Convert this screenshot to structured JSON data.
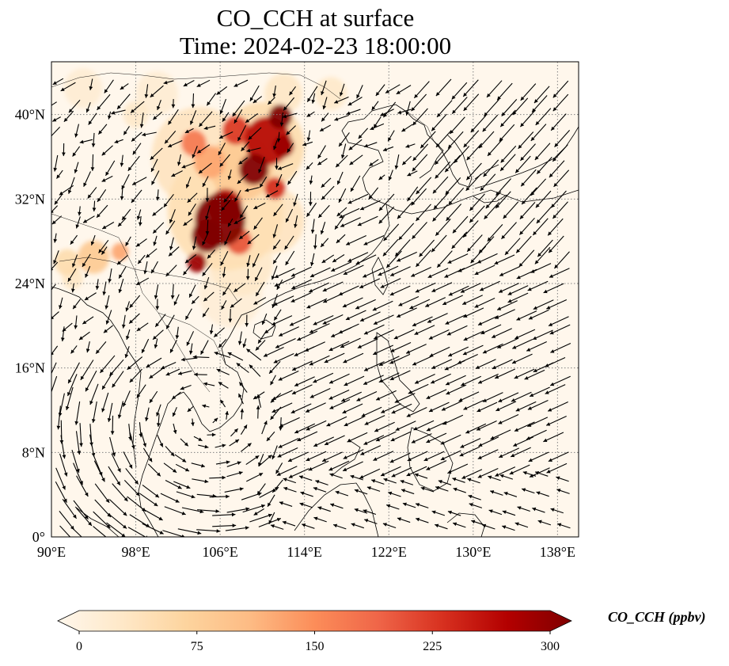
{
  "title": {
    "line1": "CO_CCH at surface",
    "line2": "Time: 2024-02-23 18:00:00"
  },
  "map": {
    "projection": "PlateCarree",
    "lon_range": [
      90,
      140
    ],
    "lat_range": [
      0,
      45
    ],
    "lon_ticks": [
      {
        "value": 90,
        "label": "90°E"
      },
      {
        "value": 98,
        "label": "98°E"
      },
      {
        "value": 106,
        "label": "106°E"
      },
      {
        "value": 114,
        "label": "114°E"
      },
      {
        "value": 122,
        "label": "122°E"
      },
      {
        "value": 130,
        "label": "130°E"
      },
      {
        "value": 138,
        "label": "138°E"
      }
    ],
    "lat_ticks": [
      {
        "value": 0,
        "label": "0°"
      },
      {
        "value": 8,
        "label": "8°N"
      },
      {
        "value": 16,
        "label": "16°N"
      },
      {
        "value": 24,
        "label": "24°N"
      },
      {
        "value": 32,
        "label": "32°N"
      },
      {
        "value": 40,
        "label": "40°N"
      }
    ],
    "gridlines": "dotted",
    "background_color": "#fff7ec",
    "concentration_blobs": [
      {
        "lon": 106.0,
        "lat": 30.0,
        "r": 2.4,
        "value": 300
      },
      {
        "lon": 104.8,
        "lat": 28.5,
        "r": 1.5,
        "value": 300
      },
      {
        "lon": 106.5,
        "lat": 31.3,
        "r": 1.6,
        "value": 260
      },
      {
        "lon": 103.8,
        "lat": 26.0,
        "r": 0.9,
        "value": 280
      },
      {
        "lon": 107.8,
        "lat": 28.0,
        "r": 1.2,
        "value": 200
      },
      {
        "lon": 110.5,
        "lat": 37.5,
        "r": 2.2,
        "value": 260
      },
      {
        "lon": 111.7,
        "lat": 39.8,
        "r": 1.1,
        "value": 300
      },
      {
        "lon": 109.2,
        "lat": 34.8,
        "r": 1.4,
        "value": 300
      },
      {
        "lon": 107.5,
        "lat": 38.5,
        "r": 1.3,
        "value": 220
      },
      {
        "lon": 112.0,
        "lat": 37.0,
        "r": 1.0,
        "value": 280
      },
      {
        "lon": 111.2,
        "lat": 33.0,
        "r": 1.0,
        "value": 230
      },
      {
        "lon": 103.5,
        "lat": 37.3,
        "r": 1.2,
        "value": 170
      },
      {
        "lon": 105.0,
        "lat": 35.5,
        "r": 1.5,
        "value": 130
      },
      {
        "lon": 108.0,
        "lat": 35.0,
        "r": 3.0,
        "value": 90
      },
      {
        "lon": 106.5,
        "lat": 31.0,
        "r": 5.5,
        "value": 55
      },
      {
        "lon": 104.0,
        "lat": 36.0,
        "r": 4.5,
        "value": 45
      },
      {
        "lon": 110.0,
        "lat": 37.0,
        "r": 4.0,
        "value": 60
      },
      {
        "lon": 111.0,
        "lat": 30.0,
        "r": 3.0,
        "value": 45
      },
      {
        "lon": 107.0,
        "lat": 23.0,
        "r": 3.0,
        "value": 22
      },
      {
        "lon": 108.0,
        "lat": 26.0,
        "r": 3.0,
        "value": 35
      },
      {
        "lon": 94.0,
        "lat": 26.5,
        "r": 1.5,
        "value": 90
      },
      {
        "lon": 96.5,
        "lat": 27.0,
        "r": 0.8,
        "value": 130
      },
      {
        "lon": 91.5,
        "lat": 26.0,
        "r": 1.2,
        "value": 60
      },
      {
        "lon": 92.0,
        "lat": 24.5,
        "r": 1.0,
        "value": 40
      },
      {
        "lon": 93.0,
        "lat": 42.5,
        "r": 1.8,
        "value": 25
      },
      {
        "lon": 100.0,
        "lat": 42.0,
        "r": 2.0,
        "value": 25
      },
      {
        "lon": 116.5,
        "lat": 42.0,
        "r": 1.5,
        "value": 35
      },
      {
        "lon": 112.0,
        "lat": 42.0,
        "r": 1.8,
        "value": 40
      },
      {
        "lon": 98.0,
        "lat": 40.0,
        "r": 1.2,
        "value": 35
      }
    ],
    "wind_flow_regions": [
      {
        "name": "westerlies-north",
        "lon": 96,
        "lat": 36,
        "rx": 8,
        "ry": 8,
        "dir": 340,
        "speed": 0.6
      },
      {
        "name": "northeasterly-outflow",
        "lon": 127,
        "lat": 28,
        "rx": 12,
        "ry": 8,
        "dir": 220,
        "speed": 1.3
      },
      {
        "name": "east-jet",
        "lon": 134,
        "lat": 34,
        "rx": 7,
        "ry": 10,
        "dir": 250,
        "speed": 1.2
      },
      {
        "name": "scs-northeasterly",
        "lon": 118,
        "lat": 17,
        "rx": 10,
        "ry": 8,
        "dir": 245,
        "speed": 1.1
      },
      {
        "name": "vortex-indochina",
        "lon": 103,
        "lat": 14,
        "rx": 6,
        "ry": 5,
        "dir": 270,
        "speed": 0.7
      }
    ]
  },
  "colorbar": {
    "label": "CO_CCH (ppbv)",
    "vmin": 0,
    "vmax": 300,
    "extend": "both",
    "ticks": [
      {
        "value": 0,
        "label": "0"
      },
      {
        "value": 75,
        "label": "75"
      },
      {
        "value": 150,
        "label": "150"
      },
      {
        "value": 225,
        "label": "225"
      },
      {
        "value": 300,
        "label": "300"
      }
    ],
    "colormap": "OrRd",
    "colors": [
      "#fff7ec",
      "#fee8c8",
      "#fdd49e",
      "#fdbb84",
      "#fc8d59",
      "#ef6548",
      "#d7301f",
      "#b30000",
      "#7f0000"
    ]
  }
}
